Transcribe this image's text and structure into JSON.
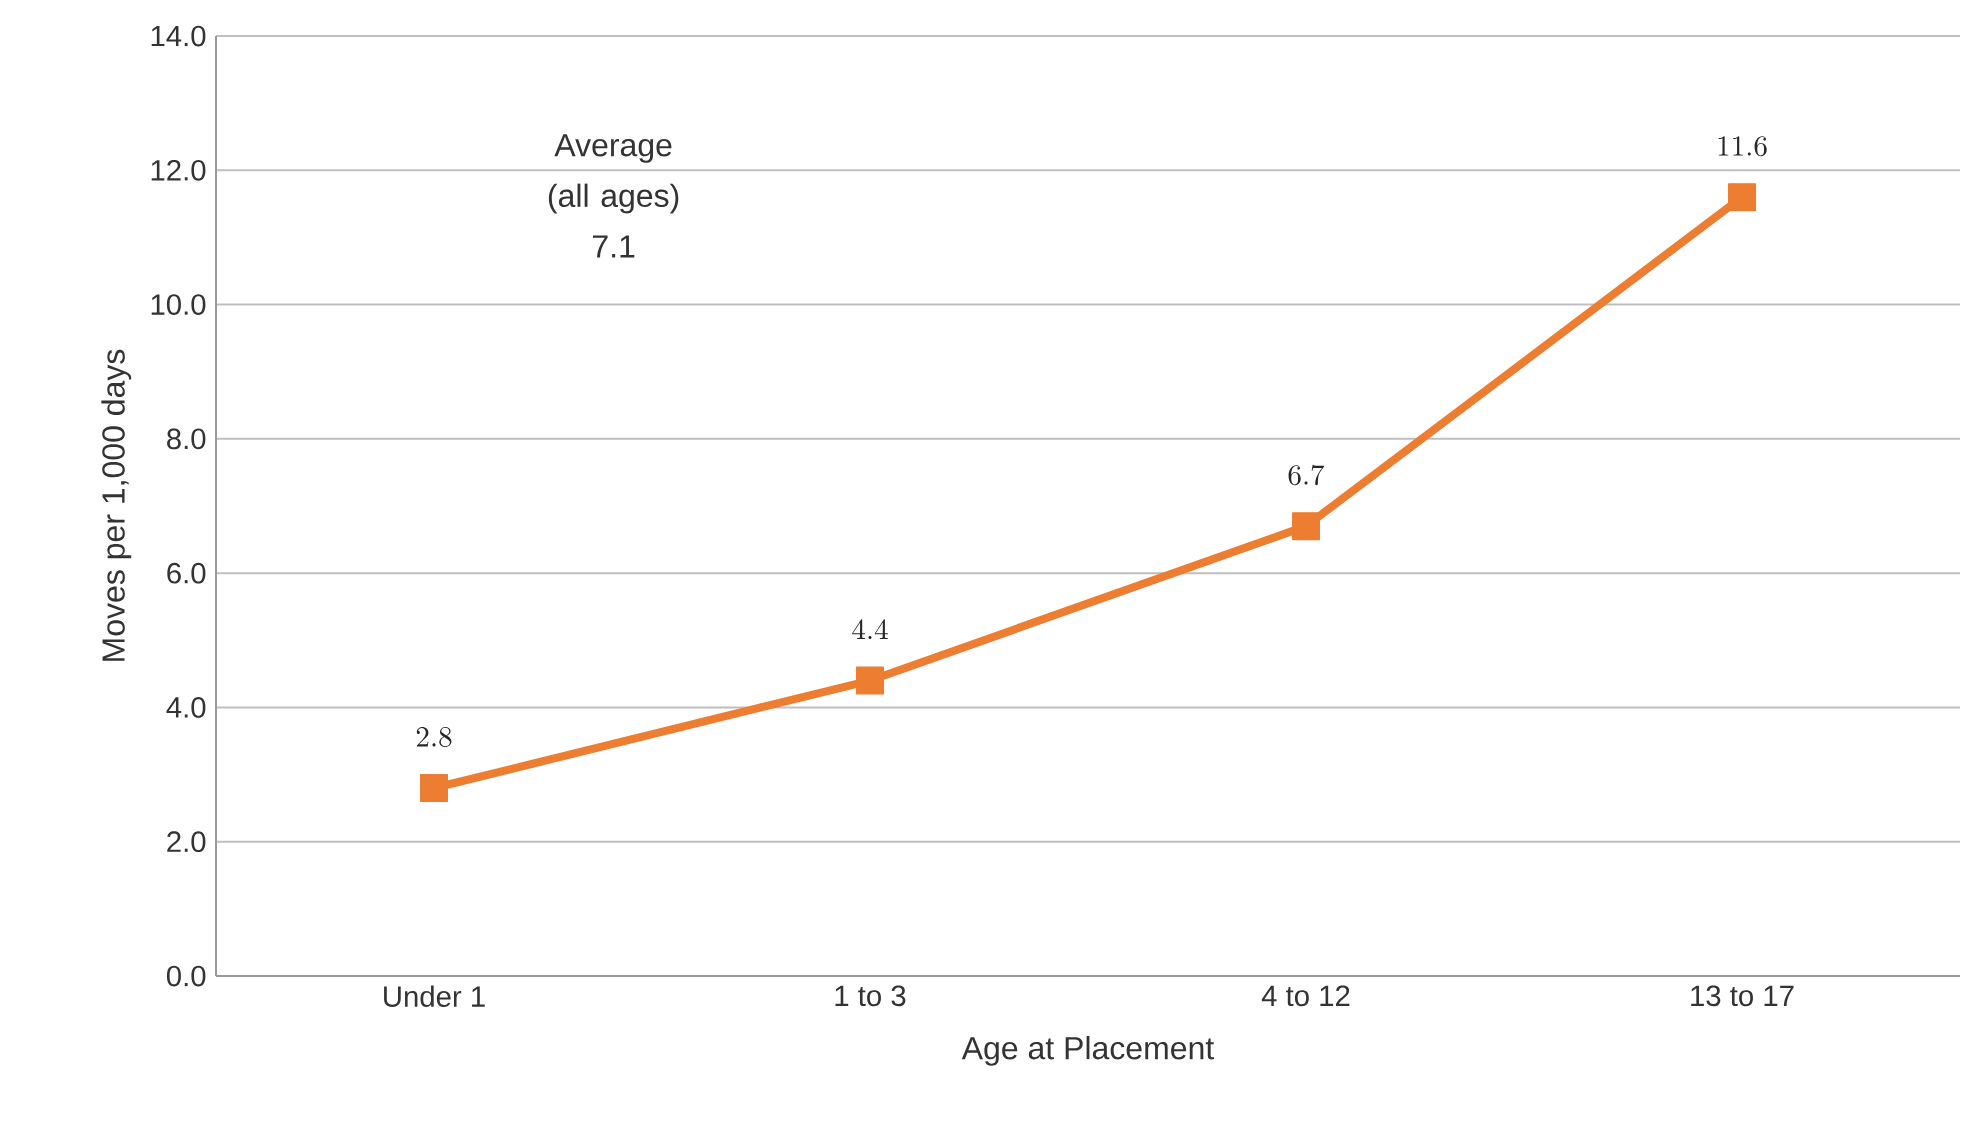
{
  "chart_data": {
    "type": "line",
    "xlabel": "Age at Placement",
    "ylabel": "Moves per 1,000 days",
    "categories": [
      "Under 1",
      "1 to 3",
      "4 to 12",
      "13 to 17"
    ],
    "series": [
      {
        "color": "#ed7d31",
        "values": [
          2.8,
          4.4,
          6.7,
          11.6
        ]
      }
    ],
    "ylim": [
      0,
      14
    ],
    "yticks": [
      {
        "value": 0,
        "label": "0.0"
      },
      {
        "value": 2,
        "label": "2.0"
      },
      {
        "value": 4,
        "label": "4.0"
      },
      {
        "value": 6,
        "label": "6.0"
      },
      {
        "value": 8,
        "label": "8.0"
      },
      {
        "value": 10,
        "label": "10.0"
      },
      {
        "value": 12,
        "label": "12.0"
      },
      {
        "value": 14,
        "label": "14.0"
      }
    ],
    "grid": "y",
    "marker": "square",
    "line_style": "solid",
    "data_labels": true,
    "annotations": [
      "Average (all ages) 7.1"
    ]
  }
}
